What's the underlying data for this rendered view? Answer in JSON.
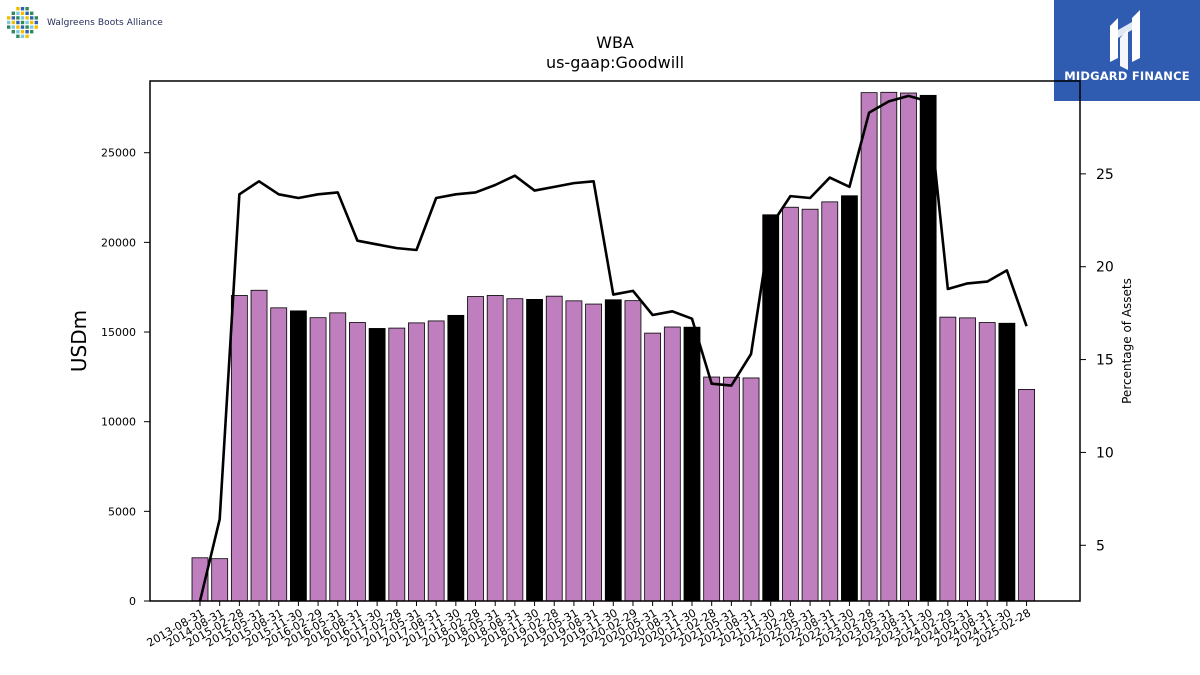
{
  "brand": {
    "left_text": "Walgreens Boots Alliance",
    "right_text": "MIDGARD FINANCE",
    "logo_left_colors": [
      "#2e8b57",
      "#7ec8e3",
      "#f0c000",
      "#3060b0"
    ],
    "logo_right_color": "#2f5bb0"
  },
  "colors": {
    "bar_default": "#bf7fbf",
    "bar_highlight": "#000000",
    "line": "#000000"
  },
  "chart_data": {
    "type": "bar",
    "title": "WBA",
    "subtitle": "us-gaap:Goodwill",
    "ylabel": "USDm",
    "y2label": "Percentage of Assets",
    "ylim": [
      0,
      29000
    ],
    "y2lim": [
      2,
      30
    ],
    "yticks": [
      0,
      5000,
      10000,
      15000,
      20000,
      25000
    ],
    "y2ticks": [
      5,
      10,
      15,
      20,
      25
    ],
    "grid": false,
    "categories": [
      "2013-08-31",
      "2014-08-31",
      "2015-02-28",
      "2015-05-31",
      "2015-08-31",
      "2015-11-30",
      "2016-02-29",
      "2016-05-31",
      "2016-08-31",
      "2016-11-30",
      "2017-02-28",
      "2017-05-31",
      "2017-08-31",
      "2017-11-30",
      "2018-02-28",
      "2018-05-31",
      "2018-08-31",
      "2018-11-30",
      "2019-02-28",
      "2019-05-31",
      "2019-08-31",
      "2019-11-30",
      "2020-02-29",
      "2020-05-31",
      "2020-08-31",
      "2020-11-30",
      "2021-02-28",
      "2021-05-31",
      "2021-08-31",
      "2021-11-30",
      "2022-02-28",
      "2022-05-31",
      "2022-08-31",
      "2022-11-30",
      "2023-02-28",
      "2023-05-31",
      "2023-08-31",
      "2023-11-30",
      "2024-02-29",
      "2024-05-31",
      "2024-08-31",
      "2024-11-30",
      "2025-02-28"
    ],
    "series": [
      {
        "type": "bar",
        "axis": "left",
        "values": [
          2410,
          2360,
          17040,
          17330,
          16350,
          16180,
          15800,
          16070,
          15530,
          15200,
          15220,
          15510,
          15620,
          15930,
          16980,
          17040,
          16860,
          16820,
          17000,
          16740,
          16560,
          16800,
          16750,
          14940,
          15280,
          15270,
          12490,
          12480,
          12440,
          21540,
          21960,
          21850,
          22260,
          22600,
          28350,
          28370,
          28330,
          28200,
          15830,
          15790,
          15530,
          15490,
          11800
        ],
        "highlight": [
          false,
          false,
          false,
          false,
          false,
          true,
          false,
          false,
          false,
          true,
          false,
          false,
          false,
          true,
          false,
          false,
          false,
          true,
          false,
          false,
          false,
          true,
          false,
          false,
          false,
          true,
          false,
          false,
          false,
          true,
          false,
          false,
          false,
          true,
          false,
          false,
          false,
          true,
          false,
          false,
          false,
          true,
          false
        ]
      },
      {
        "type": "line",
        "axis": "right",
        "values": [
          2.0,
          6.4,
          23.9,
          24.6,
          23.9,
          23.7,
          23.9,
          24.0,
          21.4,
          21.2,
          21.0,
          20.9,
          23.7,
          23.9,
          24.0,
          24.4,
          24.9,
          24.1,
          24.3,
          24.5,
          24.6,
          18.5,
          18.7,
          17.4,
          17.6,
          17.2,
          13.7,
          13.6,
          15.3,
          22.2,
          23.8,
          23.7,
          24.8,
          24.3,
          28.3,
          28.9,
          29.2,
          28.9,
          18.8,
          19.1,
          19.2,
          19.8,
          16.8
        ]
      }
    ]
  }
}
